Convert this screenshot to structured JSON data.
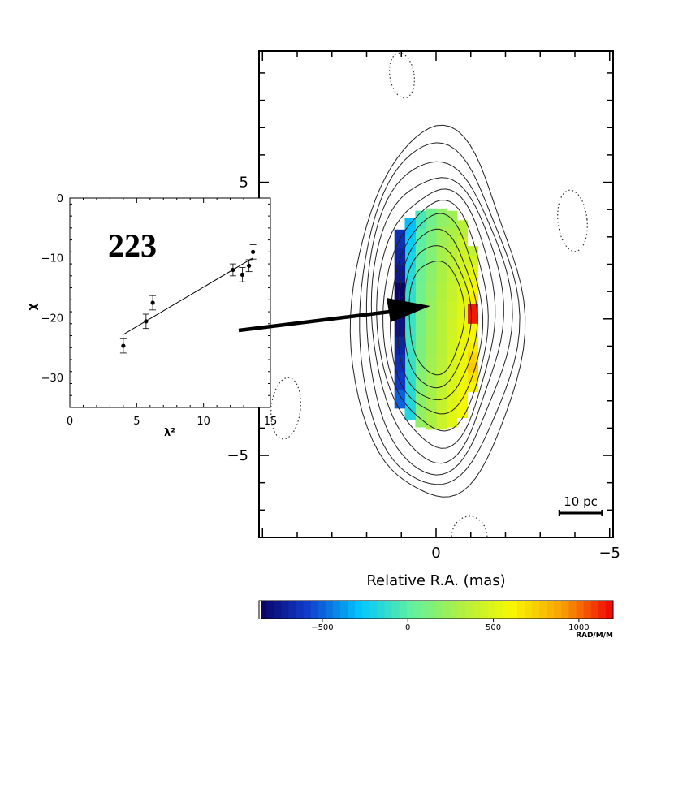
{
  "chart_data": [
    {
      "panel": "main",
      "type": "heatmap",
      "xlabel": "Relative R.A. (mas)",
      "ylabel": "",
      "x_ticks": [
        0,
        -5
      ],
      "y_ticks": [
        5,
        -5
      ],
      "xlim": [
        5.1,
        -5.1
      ],
      "ylim": [
        -8.0,
        9.8
      ],
      "scale_bar_label": "10 pc",
      "scale_bar_length_mas": 1.25,
      "contour_levels": 10,
      "rm_columns": [
        {
          "x": -1.05,
          "values": [
            380,
            450,
            520,
            560,
            600,
            650,
            1150,
            1150,
            620,
            600,
            650,
            720,
            760,
            680,
            620
          ]
        },
        {
          "x": -0.75,
          "values": [
            350,
            420,
            450,
            470,
            500,
            520,
            540,
            560,
            560,
            560,
            580,
            600
          ]
        },
        {
          "x": -0.45,
          "values": [
            250,
            300,
            350,
            380,
            400,
            420,
            440,
            450,
            470,
            480,
            500,
            520
          ]
        },
        {
          "x": -0.15,
          "values": [
            200,
            250,
            280,
            300,
            320,
            330,
            340,
            350,
            360,
            380,
            400,
            420
          ]
        },
        {
          "x": 0.15,
          "values": [
            80,
            120,
            150,
            180,
            200,
            220,
            240,
            250,
            260,
            270,
            280,
            300
          ]
        },
        {
          "x": 0.45,
          "values": [
            -50,
            0,
            30,
            60,
            80,
            100,
            110,
            120,
            130,
            150,
            170,
            200
          ]
        },
        {
          "x": 0.75,
          "values": [
            -300,
            -250,
            -200,
            -150,
            -120,
            -100,
            -90,
            -80,
            -100,
            -120,
            -150,
            -180
          ]
        },
        {
          "x": 1.05,
          "values": [
            -650,
            -700,
            -750,
            -850,
            -850,
            -780,
            -700,
            -650,
            -600,
            -500
          ]
        }
      ],
      "colorbar": {
        "min": -870,
        "max": 1200,
        "ticks": [
          -500,
          0,
          500,
          1000
        ],
        "unit": "RAD/M/M",
        "colors": [
          "#0b0060",
          "#1040d0",
          "#00c8ff",
          "#60f0a0",
          "#b0f040",
          "#f8f800",
          "#f8a000",
          "#f00000"
        ]
      }
    },
    {
      "panel": "inset",
      "type": "scatter",
      "label": "223",
      "xlabel": "λ²",
      "ylabel": "χ",
      "xlim": [
        0,
        15
      ],
      "ylim": [
        -35,
        0
      ],
      "x_ticks": [
        0,
        5,
        10,
        15
      ],
      "y_ticks": [
        0,
        -10,
        -20,
        -30
      ],
      "points": [
        {
          "x": 4.0,
          "y": -24.7,
          "err": 1.2
        },
        {
          "x": 5.7,
          "y": -20.6,
          "err": 1.2
        },
        {
          "x": 6.2,
          "y": -17.5,
          "err": 1.2
        },
        {
          "x": 12.2,
          "y": -12.0,
          "err": 1.0
        },
        {
          "x": 12.9,
          "y": -12.8,
          "err": 1.2
        },
        {
          "x": 13.4,
          "y": -11.3,
          "err": 1.0
        },
        {
          "x": 13.7,
          "y": -9.0,
          "err": 1.2
        }
      ],
      "fit": {
        "x": [
          4.0,
          13.7
        ],
        "y": [
          -22.8,
          -10.0
        ]
      }
    }
  ]
}
